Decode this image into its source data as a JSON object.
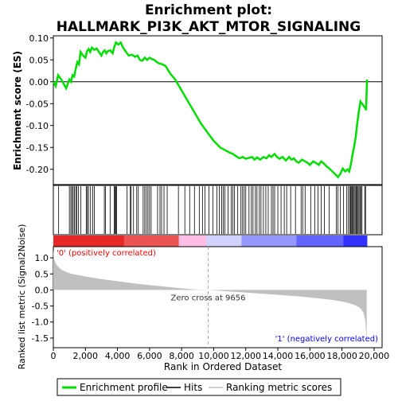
{
  "chart_data": {
    "type": "line",
    "title": "Enrichment plot:\nHALLMARK_PI3K_AKT_MTOR_SIGNALING",
    "title_lines": [
      "Enrichment plot:",
      "HALLMARK_PI3K_AKT_MTOR_SIGNALING"
    ],
    "colors": {
      "enrichment": "#00dd00",
      "hits": "#000000",
      "ranking": "#c0c0c0",
      "positive": "#ff0000",
      "negative": "#0000ff",
      "zero_line": "#aaaaaa"
    },
    "es_panel": {
      "ylabel": "Enrichment score (ES)",
      "ylim": [
        -0.235,
        0.105
      ],
      "yticks": [
        0.1,
        0.05,
        0.0,
        -0.05,
        -0.1,
        -0.15,
        -0.2
      ],
      "ytick_labels": [
        "0.10",
        "0.05",
        "0.00",
        "-0.05",
        "-0.10",
        "-0.15",
        "-0.20"
      ],
      "grid": false
    },
    "series": [
      {
        "name": "Enrichment profile",
        "points": [
          [
            0,
            0.0
          ],
          [
            150,
            -0.01
          ],
          [
            300,
            0.015
          ],
          [
            500,
            0.005
          ],
          [
            800,
            -0.015
          ],
          [
            1000,
            0.005
          ],
          [
            1100,
            0.0
          ],
          [
            1200,
            0.015
          ],
          [
            1300,
            0.012
          ],
          [
            1400,
            0.03
          ],
          [
            1500,
            0.045
          ],
          [
            1600,
            0.04
          ],
          [
            1700,
            0.068
          ],
          [
            1850,
            0.06
          ],
          [
            2000,
            0.055
          ],
          [
            2100,
            0.07
          ],
          [
            2200,
            0.075
          ],
          [
            2300,
            0.068
          ],
          [
            2400,
            0.078
          ],
          [
            2550,
            0.073
          ],
          [
            2700,
            0.076
          ],
          [
            2850,
            0.068
          ],
          [
            3000,
            0.06
          ],
          [
            3100,
            0.068
          ],
          [
            3200,
            0.072
          ],
          [
            3300,
            0.065
          ],
          [
            3400,
            0.07
          ],
          [
            3550,
            0.072
          ],
          [
            3700,
            0.065
          ],
          [
            3800,
            0.08
          ],
          [
            3900,
            0.09
          ],
          [
            4050,
            0.085
          ],
          [
            4200,
            0.09
          ],
          [
            4350,
            0.078
          ],
          [
            4500,
            0.07
          ],
          [
            4700,
            0.06
          ],
          [
            4900,
            0.062
          ],
          [
            5100,
            0.057
          ],
          [
            5250,
            0.06
          ],
          [
            5400,
            0.05
          ],
          [
            5550,
            0.048
          ],
          [
            5700,
            0.055
          ],
          [
            5850,
            0.05
          ],
          [
            6000,
            0.055
          ],
          [
            6150,
            0.052
          ],
          [
            6300,
            0.05
          ],
          [
            6450,
            0.045
          ],
          [
            6600,
            0.042
          ],
          [
            6800,
            0.04
          ],
          [
            7000,
            0.036
          ],
          [
            7300,
            0.018
          ],
          [
            7600,
            0.005
          ],
          [
            8000,
            -0.02
          ],
          [
            8400,
            -0.045
          ],
          [
            8800,
            -0.07
          ],
          [
            9200,
            -0.095
          ],
          [
            9656,
            -0.118
          ],
          [
            10000,
            -0.135
          ],
          [
            10400,
            -0.15
          ],
          [
            10800,
            -0.158
          ],
          [
            11000,
            -0.162
          ],
          [
            11200,
            -0.165
          ],
          [
            11400,
            -0.17
          ],
          [
            11600,
            -0.175
          ],
          [
            11800,
            -0.172
          ],
          [
            12000,
            -0.176
          ],
          [
            12200,
            -0.174
          ],
          [
            12400,
            -0.172
          ],
          [
            12550,
            -0.178
          ],
          [
            12700,
            -0.173
          ],
          [
            12900,
            -0.178
          ],
          [
            13100,
            -0.172
          ],
          [
            13300,
            -0.175
          ],
          [
            13450,
            -0.168
          ],
          [
            13600,
            -0.172
          ],
          [
            13800,
            -0.165
          ],
          [
            13950,
            -0.172
          ],
          [
            14100,
            -0.176
          ],
          [
            14300,
            -0.172
          ],
          [
            14500,
            -0.18
          ],
          [
            14700,
            -0.172
          ],
          [
            14850,
            -0.178
          ],
          [
            15000,
            -0.175
          ],
          [
            15150,
            -0.182
          ],
          [
            15300,
            -0.185
          ],
          [
            15500,
            -0.178
          ],
          [
            15700,
            -0.182
          ],
          [
            15850,
            -0.185
          ],
          [
            16000,
            -0.19
          ],
          [
            16200,
            -0.182
          ],
          [
            16400,
            -0.186
          ],
          [
            16550,
            -0.19
          ],
          [
            16700,
            -0.182
          ],
          [
            16850,
            -0.186
          ],
          [
            17000,
            -0.192
          ],
          [
            17200,
            -0.198
          ],
          [
            17400,
            -0.205
          ],
          [
            17600,
            -0.212
          ],
          [
            17750,
            -0.218
          ],
          [
            17900,
            -0.21
          ],
          [
            18050,
            -0.198
          ],
          [
            18200,
            -0.205
          ],
          [
            18350,
            -0.2
          ],
          [
            18450,
            -0.205
          ],
          [
            18550,
            -0.19
          ],
          [
            18650,
            -0.168
          ],
          [
            18750,
            -0.15
          ],
          [
            18850,
            -0.128
          ],
          [
            18950,
            -0.095
          ],
          [
            19050,
            -0.068
          ],
          [
            19150,
            -0.045
          ],
          [
            19250,
            -0.05
          ],
          [
            19350,
            -0.055
          ],
          [
            19450,
            -0.06
          ],
          [
            19500,
            -0.065
          ],
          [
            19560,
            0.005
          ]
        ]
      }
    ],
    "hits": [
      330,
      1000,
      1090,
      1170,
      1240,
      1320,
      1400,
      1470,
      1560,
      1720,
      2050,
      2120,
      2190,
      2320,
      2450,
      2560,
      3180,
      3250,
      3540,
      3800,
      3840,
      3900,
      3950,
      4600,
      4800,
      4850,
      5000,
      5200,
      5300,
      5600,
      5700,
      5800,
      5900,
      6000,
      6100,
      6500,
      6650,
      6750,
      6900,
      7100,
      7800,
      8200,
      8500,
      8800,
      9100,
      9300,
      9450,
      9700,
      9950,
      10200,
      10350,
      10500,
      10600,
      10700,
      10900,
      11100,
      11200,
      11300,
      11500,
      11700,
      11800,
      11900,
      12000,
      12200,
      12350,
      12450,
      12600,
      12700,
      12850,
      12950,
      13100,
      13250,
      13400,
      13600,
      13700,
      13800,
      14000,
      14200,
      14400,
      14550,
      14800,
      15100,
      15450,
      15550,
      15700,
      16050,
      16300,
      16500,
      16700,
      16900,
      17200,
      17650,
      17750,
      17900,
      18100,
      18300,
      18400,
      18480,
      18540,
      18600,
      18650,
      18700,
      18760,
      18820,
      18880,
      18940,
      19000,
      19060,
      19120,
      19180,
      19250,
      19420,
      19470
    ],
    "ranking_panel": {
      "ylabel": "Ranked list metric (Signal2Noise)",
      "xlabel": "Rank in Ordered Dataset",
      "xlim": [
        0,
        20500
      ],
      "ylim": [
        -1.8,
        1.35
      ],
      "xticks": [
        0,
        2000,
        4000,
        6000,
        8000,
        10000,
        12000,
        14000,
        16000,
        18000,
        20000
      ],
      "xtick_labels": [
        "0",
        "2,000",
        "4,000",
        "6,000",
        "8,000",
        "10,000",
        "12,000",
        "14,000",
        "16,000",
        "18,000",
        "20,000"
      ],
      "yticks": [
        1.0,
        0.5,
        0.0,
        -0.5,
        -1.0,
        -1.5
      ],
      "ytick_labels": [
        "1.0",
        "0.5",
        "0.0",
        "-0.5",
        "-1.0",
        "-1.5"
      ],
      "metric_points": [
        [
          0,
          1.25
        ],
        [
          60,
          0.95
        ],
        [
          200,
          0.78
        ],
        [
          500,
          0.63
        ],
        [
          1000,
          0.52
        ],
        [
          2000,
          0.42
        ],
        [
          3000,
          0.34
        ],
        [
          4000,
          0.27
        ],
        [
          5000,
          0.21
        ],
        [
          6000,
          0.15
        ],
        [
          7000,
          0.1
        ],
        [
          8000,
          0.05
        ],
        [
          9000,
          0.01
        ],
        [
          9656,
          0.0
        ],
        [
          10500,
          -0.03
        ],
        [
          12000,
          -0.08
        ],
        [
          14000,
          -0.15
        ],
        [
          15500,
          -0.21
        ],
        [
          16500,
          -0.26
        ],
        [
          17500,
          -0.32
        ],
        [
          18200,
          -0.38
        ],
        [
          18700,
          -0.45
        ],
        [
          19000,
          -0.52
        ],
        [
          19200,
          -0.6
        ],
        [
          19350,
          -0.72
        ],
        [
          19450,
          -0.95
        ],
        [
          19500,
          -1.25
        ],
        [
          19540,
          -1.7
        ]
      ],
      "total_genes": 19560,
      "zero_cross": 9656,
      "zero_cross_label": "Zero cross at 9656",
      "positive_label": "'0' (positively correlated)",
      "negative_label": "'1' (negatively correlated)"
    },
    "legend": {
      "placement": "bottom",
      "items": [
        {
          "label": "Enrichment profile",
          "kind": "line",
          "color": "#00dd00"
        },
        {
          "label": "Hits",
          "kind": "line",
          "color": "#000000"
        },
        {
          "label": "Ranking metric scores",
          "kind": "line",
          "color": "#c0c0c0"
        }
      ]
    }
  }
}
